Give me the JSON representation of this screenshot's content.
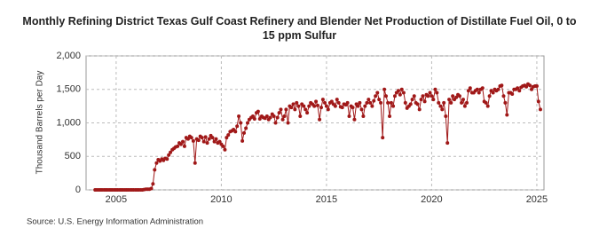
{
  "chart_data": {
    "type": "line",
    "title": "Monthly Refining District Texas Gulf Coast Refinery and Blender Net Production of Distillate Fuel Oil, 0 to 15 ppm Sulfur",
    "y_label": "Thousand Barrels per Day",
    "source": "Source: U.S. Energy Information Administration",
    "color": "#a01818",
    "grid": true,
    "xlim": [
      2003.57,
      2025.34
    ],
    "xticks": [
      2005,
      2010,
      2015,
      2020,
      2025
    ],
    "ylim": [
      0,
      2000
    ],
    "yticks": [
      0,
      {
        "value": 500,
        "label": "500"
      },
      {
        "value": 1000,
        "label": "1,000"
      },
      {
        "value": 1500,
        "label": "1,500"
      },
      {
        "value": 2000,
        "label": "2,000"
      }
    ],
    "x": [
      2004,
      2004.08,
      2004.17,
      2004.25,
      2004.33,
      2004.42,
      2004.5,
      2004.58,
      2004.67,
      2004.75,
      2004.83,
      2004.92,
      2005,
      2005.08,
      2005.17,
      2005.25,
      2005.33,
      2005.42,
      2005.5,
      2005.58,
      2005.67,
      2005.75,
      2005.83,
      2005.92,
      2006,
      2006.08,
      2006.17,
      2006.25,
      2006.33,
      2006.42,
      2006.5,
      2006.58,
      2006.67,
      2006.75,
      2006.83,
      2006.92,
      2007,
      2007.08,
      2007.17,
      2007.25,
      2007.33,
      2007.42,
      2007.5,
      2007.58,
      2007.67,
      2007.75,
      2007.83,
      2007.92,
      2008,
      2008.08,
      2008.17,
      2008.25,
      2008.33,
      2008.42,
      2008.5,
      2008.58,
      2008.67,
      2008.75,
      2008.83,
      2008.92,
      2009,
      2009.08,
      2009.17,
      2009.25,
      2009.33,
      2009.42,
      2009.5,
      2009.58,
      2009.67,
      2009.75,
      2009.83,
      2009.92,
      2010,
      2010.08,
      2010.17,
      2010.25,
      2010.33,
      2010.42,
      2010.5,
      2010.58,
      2010.67,
      2010.75,
      2010.83,
      2010.92,
      2011,
      2011.08,
      2011.17,
      2011.25,
      2011.33,
      2011.42,
      2011.5,
      2011.58,
      2011.67,
      2011.75,
      2011.83,
      2011.92,
      2012,
      2012.08,
      2012.17,
      2012.25,
      2012.33,
      2012.42,
      2012.5,
      2012.58,
      2012.67,
      2012.75,
      2012.83,
      2012.92,
      2013,
      2013.08,
      2013.17,
      2013.25,
      2013.33,
      2013.42,
      2013.5,
      2013.58,
      2013.67,
      2013.75,
      2013.83,
      2013.92,
      2014,
      2014.08,
      2014.17,
      2014.25,
      2014.33,
      2014.42,
      2014.5,
      2014.58,
      2014.67,
      2014.75,
      2014.83,
      2014.92,
      2015,
      2015.08,
      2015.17,
      2015.25,
      2015.33,
      2015.42,
      2015.5,
      2015.58,
      2015.67,
      2015.75,
      2015.83,
      2015.92,
      2016,
      2016.08,
      2016.17,
      2016.25,
      2016.33,
      2016.42,
      2016.5,
      2016.58,
      2016.67,
      2016.75,
      2016.83,
      2016.92,
      2017,
      2017.08,
      2017.17,
      2017.25,
      2017.33,
      2017.42,
      2017.5,
      2017.58,
      2017.67,
      2017.75,
      2017.83,
      2017.92,
      2018,
      2018.08,
      2018.17,
      2018.25,
      2018.33,
      2018.42,
      2018.5,
      2018.58,
      2018.67,
      2018.75,
      2018.83,
      2018.92,
      2019,
      2019.08,
      2019.17,
      2019.25,
      2019.33,
      2019.42,
      2019.5,
      2019.58,
      2019.67,
      2019.75,
      2019.83,
      2019.92,
      2020,
      2020.08,
      2020.17,
      2020.25,
      2020.33,
      2020.42,
      2020.5,
      2020.58,
      2020.67,
      2020.75,
      2020.83,
      2020.92,
      2021,
      2021.08,
      2021.17,
      2021.25,
      2021.33,
      2021.42,
      2021.5,
      2021.58,
      2021.67,
      2021.75,
      2021.83,
      2021.92,
      2022,
      2022.08,
      2022.17,
      2022.25,
      2022.33,
      2022.42,
      2022.5,
      2022.58,
      2022.67,
      2022.75,
      2022.83,
      2022.92,
      2023,
      2023.08,
      2023.17,
      2023.25,
      2023.33,
      2023.42,
      2023.5,
      2023.58,
      2023.67,
      2023.75,
      2023.83,
      2023.92,
      2024,
      2024.08,
      2024.17,
      2024.25,
      2024.33,
      2024.42,
      2024.5,
      2024.58,
      2024.67,
      2024.75,
      2024.83,
      2024.92,
      2025,
      2025.08,
      2025.17
    ],
    "values": [
      0,
      0,
      0,
      0,
      0,
      0,
      0,
      0,
      0,
      0,
      0,
      0,
      0,
      0,
      0,
      0,
      0,
      0,
      0,
      0,
      0,
      0,
      0,
      0,
      0,
      0,
      0,
      0,
      5,
      10,
      10,
      10,
      20,
      90,
      300,
      400,
      450,
      430,
      460,
      440,
      470,
      460,
      520,
      560,
      600,
      620,
      640,
      650,
      700,
      680,
      720,
      650,
      780,
      760,
      800,
      780,
      730,
      400,
      760,
      740,
      800,
      780,
      720,
      790,
      700,
      760,
      810,
      780,
      720,
      760,
      700,
      720,
      680,
      650,
      600,
      780,
      820,
      870,
      880,
      900,
      870,
      950,
      1100,
      1000,
      730,
      850,
      920,
      1000,
      1050,
      1080,
      1100,
      1060,
      1150,
      1170,
      1060,
      1100,
      1080,
      1070,
      1100,
      1050,
      1080,
      1130,
      1100,
      1000,
      1080,
      1150,
      1200,
      1050,
      1100,
      1200,
      1000,
      1250,
      1230,
      1280,
      1200,
      1300,
      1250,
      1100,
      1280,
      1250,
      1200,
      1150,
      1250,
      1300,
      1280,
      1250,
      1320,
      1260,
      1050,
      1230,
      1350,
      1300,
      1250,
      1200,
      1300,
      1320,
      1280,
      1250,
      1350,
      1300,
      1240,
      1230,
      1280,
      1270,
      1300,
      1100,
      1250,
      1230,
      1050,
      1280,
      1250,
      1300,
      1200,
      1100,
      1250,
      1300,
      1350,
      1300,
      1250,
      1330,
      1400,
      1450,
      1350,
      1300,
      780,
      1500,
      1400,
      1300,
      1100,
      1300,
      1250,
      1400,
      1450,
      1480,
      1420,
      1500,
      1450,
      1300,
      1220,
      1250,
      1280,
      1350,
      1400,
      1300,
      1280,
      1200,
      1350,
      1400,
      1320,
      1420,
      1400,
      1450,
      1400,
      1350,
      1500,
      1450,
      1300,
      1250,
      1200,
      1300,
      1100,
      700,
      1350,
      1300,
      1400,
      1350,
      1380,
      1420,
      1400,
      1300,
      1350,
      1250,
      1300,
      1480,
      1520,
      1450,
      1450,
      1480,
      1500,
      1450,
      1500,
      1520,
      1320,
      1300,
      1250,
      1400,
      1480,
      1450,
      1500,
      1480,
      1500,
      1550,
      1560,
      1400,
      1300,
      1120,
      1450,
      1450,
      1430,
      1500,
      1500,
      1520,
      1480,
      1530,
      1550,
      1560,
      1540,
      1580,
      1560,
      1500,
      1540,
      1550,
      1550,
      1320,
      1200
    ]
  }
}
